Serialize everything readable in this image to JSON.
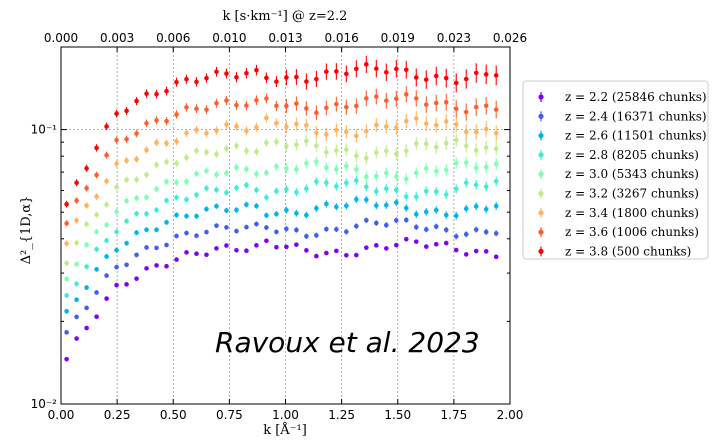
{
  "chart_data": {
    "type": "scatter",
    "title": "",
    "xlabel": "k [Å⁻¹]",
    "ylabel": "Δ²_{1D,α}",
    "top_xlabel": "k [s·km⁻¹] @ z=2.2",
    "xlim": [
      0.0,
      2.0
    ],
    "ylim": [
      0.01,
      0.2
    ],
    "yscale": "log",
    "grid": true,
    "x_ticks": [
      "0.00",
      "0.25",
      "0.50",
      "0.75",
      "1.00",
      "1.25",
      "1.50",
      "1.75",
      "2.00"
    ],
    "top_ticks": [
      "0.000",
      "0.003",
      "0.006",
      "0.010",
      "0.013",
      "0.016",
      "0.019",
      "0.023",
      "0.026"
    ],
    "y_ticks": [
      {
        "value": 0.1,
        "label": "10⁻¹"
      },
      {
        "value": 0.01,
        "label": "10⁻²"
      }
    ],
    "legend_position": "right",
    "annotation": "Ravoux et al. 2023",
    "series": [
      {
        "name": "z = 2.2  (25846 chunks)",
        "color": "#8000ff",
        "start": 0.013,
        "plateau": 0.037
      },
      {
        "name": "z = 2.4  (16371 chunks)",
        "color": "#3e5ff8",
        "start": 0.016,
        "plateau": 0.044
      },
      {
        "name": "z = 2.6  (11501 chunks)",
        "color": "#00b5eb",
        "start": 0.019,
        "plateau": 0.052
      },
      {
        "name": "z = 2.8  (8205 chunks)",
        "color": "#40ecd4",
        "start": 0.022,
        "plateau": 0.061
      },
      {
        "name": "z = 3.0  (5343 chunks)",
        "color": "#80ffb4",
        "start": 0.026,
        "plateau": 0.071
      },
      {
        "name": "z = 3.2  (3267 chunks)",
        "color": "#c0eb8d",
        "start": 0.03,
        "plateau": 0.085
      },
      {
        "name": "z = 3.4  (1800 chunks)",
        "color": "#ffb360",
        "start": 0.035,
        "plateau": 0.102
      },
      {
        "name": "z = 3.6  (1006 chunks)",
        "color": "#ff5f30",
        "start": 0.04,
        "plateau": 0.125
      },
      {
        "name": "z = 3.8  (500 chunks)",
        "color": "#ff0000",
        "start": 0.045,
        "plateau": 0.16
      }
    ]
  }
}
